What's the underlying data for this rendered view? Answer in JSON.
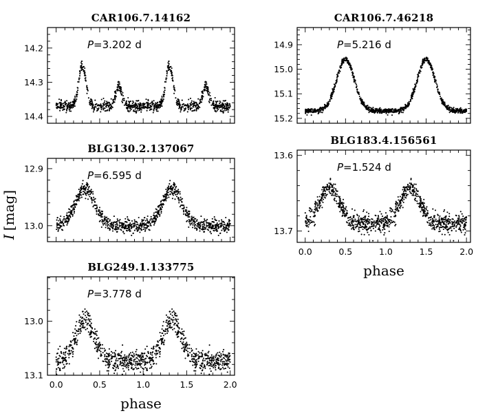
{
  "figure": {
    "ylabel_symbol": "I",
    "ylabel_unit": "[mag]",
    "xlabel": "phase"
  },
  "chart_data": [
    {
      "type": "scatter",
      "title": "CAR106.7.14162",
      "annotation_symbol": "P",
      "annotation_value": "=3.202  d",
      "period_days": 3.202,
      "xlim": [
        -0.1,
        2.05
      ],
      "ylim": [
        14.42,
        14.14
      ],
      "yticks": [
        14.2,
        14.3,
        14.4
      ],
      "xticks": [],
      "xlabel": "",
      "shape": {
        "base": 14.37,
        "noise": 0.008,
        "peaks": [
          {
            "phase": 0.3,
            "mag": 14.25,
            "width": 0.04
          },
          {
            "phase": 0.72,
            "mag": 14.31,
            "width": 0.035
          }
        ]
      }
    },
    {
      "type": "scatter",
      "title": "CAR106.7.46218",
      "annotation_symbol": "P",
      "annotation_value": "=5.216  d",
      "period_days": 5.216,
      "xlim": [
        -0.1,
        2.05
      ],
      "ylim": [
        15.22,
        14.83
      ],
      "yticks": [
        14.9,
        15.0,
        15.1,
        15.2
      ],
      "xticks": [],
      "xlabel": "",
      "shape": {
        "base": 15.17,
        "noise": 0.005,
        "peaks": [
          {
            "phase": 0.5,
            "mag": 14.96,
            "width": 0.11
          }
        ]
      }
    },
    {
      "type": "scatter",
      "title": "BLG130.2.137067",
      "annotation_symbol": "P",
      "annotation_value": "=6.595  d",
      "period_days": 6.595,
      "xlim": [
        -0.1,
        2.05
      ],
      "ylim": [
        13.028,
        12.882
      ],
      "yticks": [
        12.9,
        13.0
      ],
      "xticks": [],
      "xlabel": "",
      "shape": {
        "base": 13.0,
        "noise": 0.006,
        "peaks": [
          {
            "phase": 0.33,
            "mag": 12.935,
            "width": 0.11
          }
        ]
      }
    },
    {
      "type": "scatter",
      "title": "BLG183.4.156561",
      "annotation_symbol": "P",
      "annotation_value": "=1.524  d",
      "period_days": 1.524,
      "xlim": [
        -0.1,
        2.05
      ],
      "ylim": [
        13.715,
        13.593
      ],
      "yticks": [
        13.6,
        13.7
      ],
      "xticks": [
        0.0,
        0.5,
        1.0,
        1.5,
        2.0
      ],
      "xlabel": "phase",
      "shape": {
        "base": 13.69,
        "noise": 0.006,
        "peaks": [
          {
            "phase": 0.3,
            "mag": 13.642,
            "width": 0.12
          }
        ]
      }
    },
    {
      "type": "scatter",
      "title": "BLG249.1.133775",
      "annotation_symbol": "P",
      "annotation_value": "=3.778  d",
      "period_days": 3.778,
      "xlim": [
        -0.1,
        2.05
      ],
      "ylim": [
        13.1,
        12.918
      ],
      "yticks": [
        13.0,
        13.1
      ],
      "xticks": [
        0.0,
        0.5,
        1.0,
        1.5,
        2.0
      ],
      "xlabel": "phase",
      "shape": {
        "base": 13.075,
        "noise": 0.01,
        "peaks": [
          {
            "phase": 0.33,
            "mag": 13.0,
            "width": 0.11
          }
        ]
      }
    }
  ]
}
